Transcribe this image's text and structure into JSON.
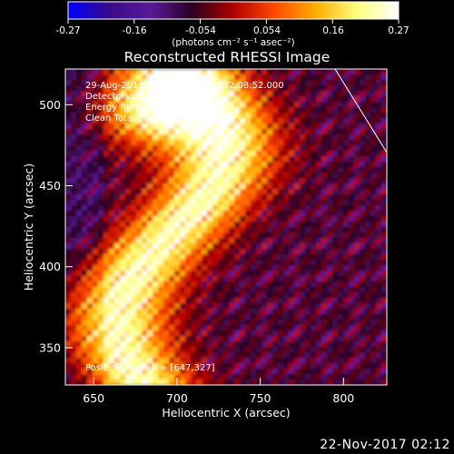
{
  "colorbar": {
    "tick_labels": [
      "-0.27",
      "-0.16",
      "-0.054",
      "0.054",
      "0.16",
      "0.27"
    ],
    "units": "(photons cm⁻² s⁻¹ asec⁻²)",
    "range": [
      -0.27,
      0.27
    ],
    "colormap": [
      "#0000ff",
      "#3a0a8a",
      "#5a1a9a",
      "#2a0020",
      "#b00000",
      "#ff4a00",
      "#ffae00",
      "#ffff80",
      "#ffffff"
    ]
  },
  "chart_data": {
    "type": "heatmap",
    "title": "Reconstructed RHESSI Image",
    "xlabel": "Heliocentric X (arcsec)",
    "ylabel": "Heliocentric Y (arcsec)",
    "xlim": [
      633,
      826
    ],
    "ylim": [
      327,
      522
    ],
    "x_ticks": [
      650,
      700,
      750,
      800
    ],
    "y_ticks": [
      350,
      400,
      450,
      500
    ],
    "annotations": [
      "29-Aug-2016 12:08:52.000 to 12:08:52.000",
      "Detectors: 3F 8F, Att 0",
      "Energy Range: 3.0 - 6.0 keV",
      "Clean     Total counts: 7.68E+04"
    ],
    "peak_label": "Position of Peak = [647,327]",
    "peak": [
      647,
      327
    ],
    "limb_label": ""
  },
  "footer": {
    "date": "22-Nov-2017 02:12"
  }
}
